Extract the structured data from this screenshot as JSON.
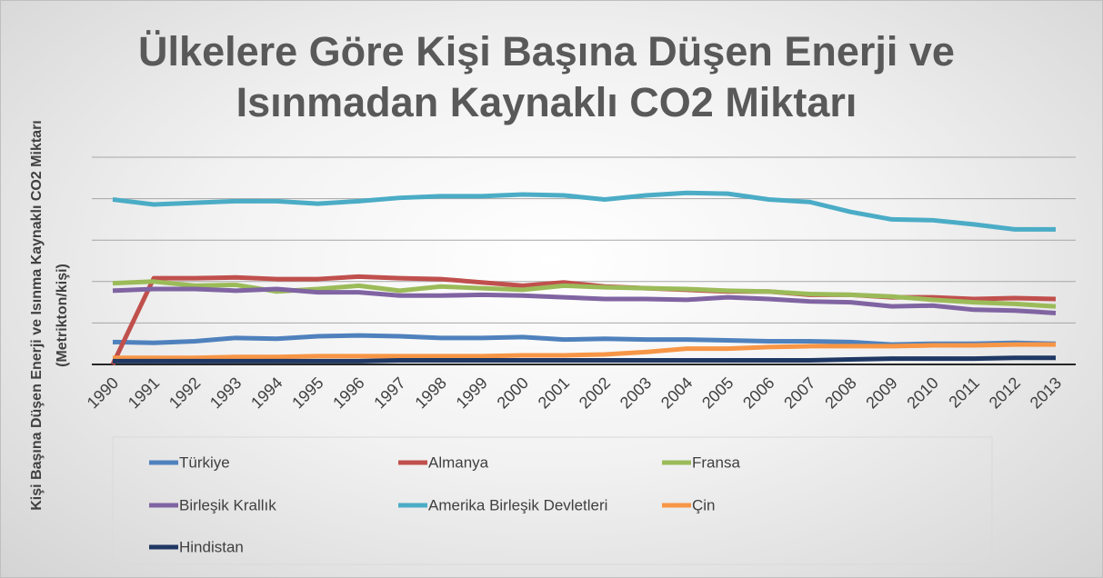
{
  "chart_data": {
    "type": "line",
    "title": "Ülkelere Göre Kişi Başına Düşen Enerji ve Isınmadan Kaynaklı CO2 Miktarı",
    "y_label": "Kişi Başına Düşen Enerji ve Isınma Kaynaklı CO2 Miktarı (Metrikton/kişi)",
    "categories": [
      "1990",
      "1991",
      "1992",
      "1993",
      "1994",
      "1995",
      "1996",
      "1997",
      "1998",
      "1999",
      "2000",
      "2001",
      "2002",
      "2003",
      "2004",
      "2005",
      "2006",
      "2007",
      "2008",
      "2009",
      "2010",
      "2011",
      "2012",
      "2013"
    ],
    "ylim": [
      0,
      25
    ],
    "yticks": [
      0,
      5,
      10,
      15,
      20,
      25
    ],
    "grid": true,
    "series": [
      {
        "name": "Türkiye",
        "color": "#4f81bd",
        "values": [
          2.7,
          2.6,
          2.8,
          3.2,
          3.1,
          3.4,
          3.5,
          3.4,
          3.2,
          3.2,
          3.3,
          3.0,
          3.1,
          3.0,
          3.0,
          2.9,
          2.8,
          2.8,
          2.7,
          2.4,
          2.5,
          2.5,
          2.6,
          2.5
        ]
      },
      {
        "name": "Almanya",
        "color": "#c0504d",
        "values": [
          0,
          10.4,
          10.4,
          10.5,
          10.3,
          10.3,
          10.6,
          10.4,
          10.3,
          9.9,
          9.5,
          9.9,
          9.4,
          9.2,
          9.0,
          8.8,
          8.8,
          8.4,
          8.4,
          8.1,
          8.1,
          7.9,
          8.0,
          7.9
        ]
      },
      {
        "name": "Fransa",
        "color": "#9bbb59",
        "values": [
          9.8,
          10.0,
          9.5,
          9.6,
          8.8,
          9.1,
          9.5,
          8.9,
          9.4,
          9.2,
          9.0,
          9.5,
          9.3,
          9.2,
          9.1,
          8.9,
          8.8,
          8.5,
          8.4,
          8.2,
          7.8,
          7.5,
          7.3,
          7.0
        ]
      },
      {
        "name": "Birleşik Krallık",
        "color": "#8064a2",
        "values": [
          8.9,
          9.1,
          9.1,
          8.9,
          9.1,
          8.7,
          8.7,
          8.3,
          8.3,
          8.4,
          8.3,
          8.1,
          7.9,
          7.9,
          7.8,
          8.1,
          7.9,
          7.6,
          7.5,
          7.0,
          7.1,
          6.6,
          6.5,
          6.2
        ]
      },
      {
        "name": "Amerika Birleşik Devletleri",
        "color": "#4bacc6",
        "values": [
          19.9,
          19.3,
          19.5,
          19.7,
          19.7,
          19.4,
          19.7,
          20.1,
          20.3,
          20.3,
          20.5,
          20.4,
          19.9,
          20.4,
          20.7,
          20.6,
          19.9,
          19.6,
          18.4,
          17.5,
          17.4,
          16.9,
          16.3,
          16.3
        ]
      },
      {
        "name": "Çin",
        "color": "#f79646",
        "values": [
          0.8,
          0.8,
          0.8,
          0.9,
          0.9,
          1.0,
          1.0,
          1.0,
          1.0,
          1.0,
          1.1,
          1.1,
          1.2,
          1.5,
          1.9,
          1.9,
          2.1,
          2.2,
          2.2,
          2.2,
          2.3,
          2.3,
          2.4,
          2.4
        ]
      },
      {
        "name": "Hindistan",
        "color": "#1f3864",
        "values": [
          0.4,
          0.4,
          0.4,
          0.4,
          0.4,
          0.4,
          0.4,
          0.5,
          0.5,
          0.5,
          0.5,
          0.5,
          0.5,
          0.5,
          0.5,
          0.5,
          0.5,
          0.5,
          0.6,
          0.7,
          0.7,
          0.7,
          0.8,
          0.8
        ]
      }
    ]
  }
}
